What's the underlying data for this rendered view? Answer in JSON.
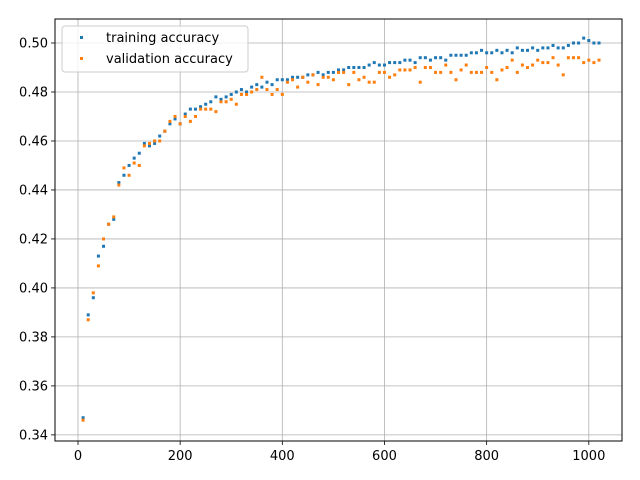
{
  "chart_data": {
    "type": "scatter",
    "title": "",
    "xlabel": "",
    "ylabel": "",
    "xlim": [
      -45,
      1065
    ],
    "ylim": [
      0.3375,
      0.5098
    ],
    "xticks": [
      0,
      200,
      400,
      600,
      800,
      1000
    ],
    "xtick_labels": [
      "0",
      "200",
      "400",
      "600",
      "800",
      "1000"
    ],
    "yticks": [
      0.34,
      0.36,
      0.38,
      0.4,
      0.42,
      0.44,
      0.46,
      0.48,
      0.5
    ],
    "ytick_labels": [
      "0.34",
      "0.36",
      "0.38",
      "0.40",
      "0.42",
      "0.44",
      "0.46",
      "0.48",
      "0.50"
    ],
    "grid": true,
    "legend": "upper-left",
    "series": [
      {
        "name": "training accuracy",
        "color": "#1f77b4",
        "x": [
          10,
          20,
          30,
          40,
          50,
          60,
          70,
          80,
          90,
          100,
          110,
          120,
          130,
          140,
          150,
          160,
          170,
          180,
          190,
          200,
          210,
          220,
          230,
          240,
          250,
          260,
          270,
          280,
          290,
          300,
          310,
          320,
          330,
          340,
          350,
          360,
          370,
          380,
          390,
          400,
          410,
          420,
          430,
          440,
          450,
          460,
          470,
          480,
          490,
          500,
          510,
          520,
          530,
          540,
          550,
          560,
          570,
          580,
          590,
          600,
          610,
          620,
          630,
          640,
          650,
          660,
          670,
          680,
          690,
          700,
          710,
          720,
          730,
          740,
          750,
          760,
          770,
          780,
          790,
          800,
          810,
          820,
          830,
          840,
          850,
          860,
          870,
          880,
          890,
          900,
          910,
          920,
          930,
          940,
          950,
          960,
          970,
          980,
          990,
          1000,
          1010,
          1020
        ],
        "y": [
          0.347,
          0.389,
          0.396,
          0.413,
          0.417,
          0.426,
          0.428,
          0.443,
          0.446,
          0.45,
          0.453,
          0.455,
          0.459,
          0.458,
          0.459,
          0.462,
          0.464,
          0.467,
          0.469,
          0.467,
          0.471,
          0.473,
          0.473,
          0.474,
          0.475,
          0.476,
          0.478,
          0.477,
          0.478,
          0.479,
          0.48,
          0.481,
          0.48,
          0.482,
          0.483,
          0.482,
          0.484,
          0.483,
          0.485,
          0.485,
          0.485,
          0.486,
          0.486,
          0.486,
          0.487,
          0.487,
          0.488,
          0.487,
          0.488,
          0.488,
          0.489,
          0.489,
          0.49,
          0.49,
          0.49,
          0.49,
          0.491,
          0.492,
          0.491,
          0.491,
          0.492,
          0.492,
          0.492,
          0.493,
          0.493,
          0.492,
          0.494,
          0.494,
          0.493,
          0.494,
          0.494,
          0.493,
          0.495,
          0.495,
          0.495,
          0.495,
          0.496,
          0.496,
          0.497,
          0.496,
          0.496,
          0.497,
          0.496,
          0.497,
          0.496,
          0.498,
          0.497,
          0.497,
          0.498,
          0.497,
          0.498,
          0.498,
          0.499,
          0.498,
          0.498,
          0.499,
          0.5,
          0.5,
          0.502,
          0.501,
          0.5,
          0.5
        ]
      },
      {
        "name": "validation accuracy",
        "color": "#ff7f0e",
        "x": [
          10,
          20,
          30,
          40,
          50,
          60,
          70,
          80,
          90,
          100,
          110,
          120,
          130,
          140,
          150,
          160,
          170,
          180,
          190,
          200,
          210,
          220,
          230,
          240,
          250,
          260,
          270,
          280,
          290,
          300,
          310,
          320,
          330,
          340,
          350,
          360,
          370,
          380,
          390,
          400,
          410,
          420,
          430,
          440,
          450,
          460,
          470,
          480,
          490,
          500,
          510,
          520,
          530,
          540,
          550,
          560,
          570,
          580,
          590,
          600,
          610,
          620,
          630,
          640,
          650,
          660,
          670,
          680,
          690,
          700,
          710,
          720,
          730,
          740,
          750,
          760,
          770,
          780,
          790,
          800,
          810,
          820,
          830,
          840,
          850,
          860,
          870,
          880,
          890,
          900,
          910,
          920,
          930,
          940,
          950,
          960,
          970,
          980,
          990,
          1000,
          1010,
          1020
        ],
        "y": [
          0.346,
          0.387,
          0.398,
          0.409,
          0.42,
          0.426,
          0.429,
          0.442,
          0.449,
          0.446,
          0.451,
          0.45,
          0.458,
          0.459,
          0.46,
          0.46,
          0.464,
          0.468,
          0.47,
          0.467,
          0.47,
          0.468,
          0.47,
          0.473,
          0.473,
          0.473,
          0.472,
          0.476,
          0.476,
          0.477,
          0.475,
          0.479,
          0.479,
          0.48,
          0.481,
          0.486,
          0.481,
          0.479,
          0.481,
          0.479,
          0.484,
          0.485,
          0.482,
          0.486,
          0.484,
          0.487,
          0.483,
          0.486,
          0.486,
          0.485,
          0.488,
          0.488,
          0.483,
          0.488,
          0.485,
          0.486,
          0.484,
          0.484,
          0.488,
          0.488,
          0.486,
          0.487,
          0.489,
          0.489,
          0.489,
          0.49,
          0.484,
          0.49,
          0.49,
          0.488,
          0.488,
          0.491,
          0.488,
          0.485,
          0.489,
          0.491,
          0.488,
          0.488,
          0.488,
          0.49,
          0.488,
          0.485,
          0.489,
          0.49,
          0.493,
          0.488,
          0.491,
          0.49,
          0.491,
          0.493,
          0.492,
          0.492,
          0.494,
          0.491,
          0.487,
          0.494,
          0.494,
          0.494,
          0.492,
          0.493,
          0.492,
          0.493
        ]
      }
    ]
  }
}
